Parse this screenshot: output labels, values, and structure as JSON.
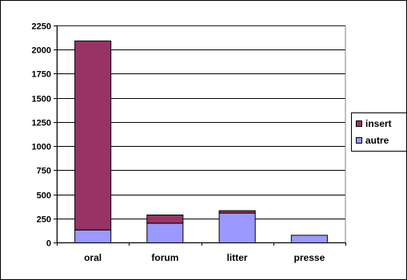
{
  "chart_data": {
    "type": "bar",
    "stacked": true,
    "categories": [
      "oral",
      "forum",
      "litter",
      "presse"
    ],
    "series": [
      {
        "name": "autre",
        "values": [
          130,
          200,
          305,
          75
        ],
        "color": "#9999ff"
      },
      {
        "name": "insert",
        "values": [
          1960,
          85,
          25,
          0
        ],
        "color": "#993366"
      }
    ],
    "ylim": [
      0,
      2250
    ],
    "yticks": [
      0,
      250,
      500,
      750,
      1000,
      1250,
      1500,
      1750,
      2000,
      2250
    ],
    "ytick_labels": [
      "0",
      "250",
      "500",
      "750",
      "1000",
      "1250",
      "1500",
      "1750",
      "2000",
      "2250"
    ],
    "grid": true,
    "legend": {
      "placement": "right",
      "order": [
        "insert",
        "autre"
      ]
    },
    "plot_background": "#ffffff",
    "bar_outline": "#000000"
  }
}
